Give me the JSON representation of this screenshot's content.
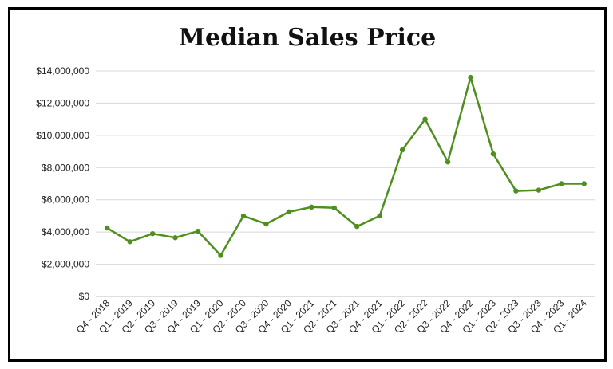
{
  "chart_data": {
    "type": "line",
    "title": "Median Sales Price",
    "xlabel": "",
    "ylabel": "",
    "ylim": [
      0,
      14000000
    ],
    "yticks": [
      0,
      2000000,
      4000000,
      6000000,
      8000000,
      10000000,
      12000000,
      14000000
    ],
    "ytick_labels": [
      "$0",
      "$2,000,000",
      "$4,000,000",
      "$6,000,000",
      "$8,000,000",
      "$10,000,000",
      "$12,000,000",
      "$14,000,000"
    ],
    "grid": true,
    "legend": "none",
    "line_color": "#4e8f1f",
    "categories": [
      "Q4 - 2018",
      "Q1 - 2019",
      "Q2 - 2019",
      "Q3 - 2019",
      "Q4 - 2019",
      "Q1 - 2020",
      "Q2 - 2020",
      "Q3 - 2020",
      "Q4 - 2020",
      "Q1 - 2021",
      "Q2 - 2021",
      "Q3 - 2021",
      "Q4 - 2021",
      "Q1 - 2022",
      "Q2 - 2022",
      "Q3 - 2022",
      "Q4 - 2022",
      "Q1 - 2023",
      "Q2 - 2023",
      "Q3 - 2023",
      "Q4 - 2023",
      "Q1 - 2024"
    ],
    "values": [
      4250000,
      3400000,
      3900000,
      3650000,
      4050000,
      2550000,
      5000000,
      4500000,
      5250000,
      5550000,
      5500000,
      4350000,
      5000000,
      9100000,
      11000000,
      8350000,
      13600000,
      8850000,
      6550000,
      6600000,
      7000000,
      7000000
    ]
  }
}
